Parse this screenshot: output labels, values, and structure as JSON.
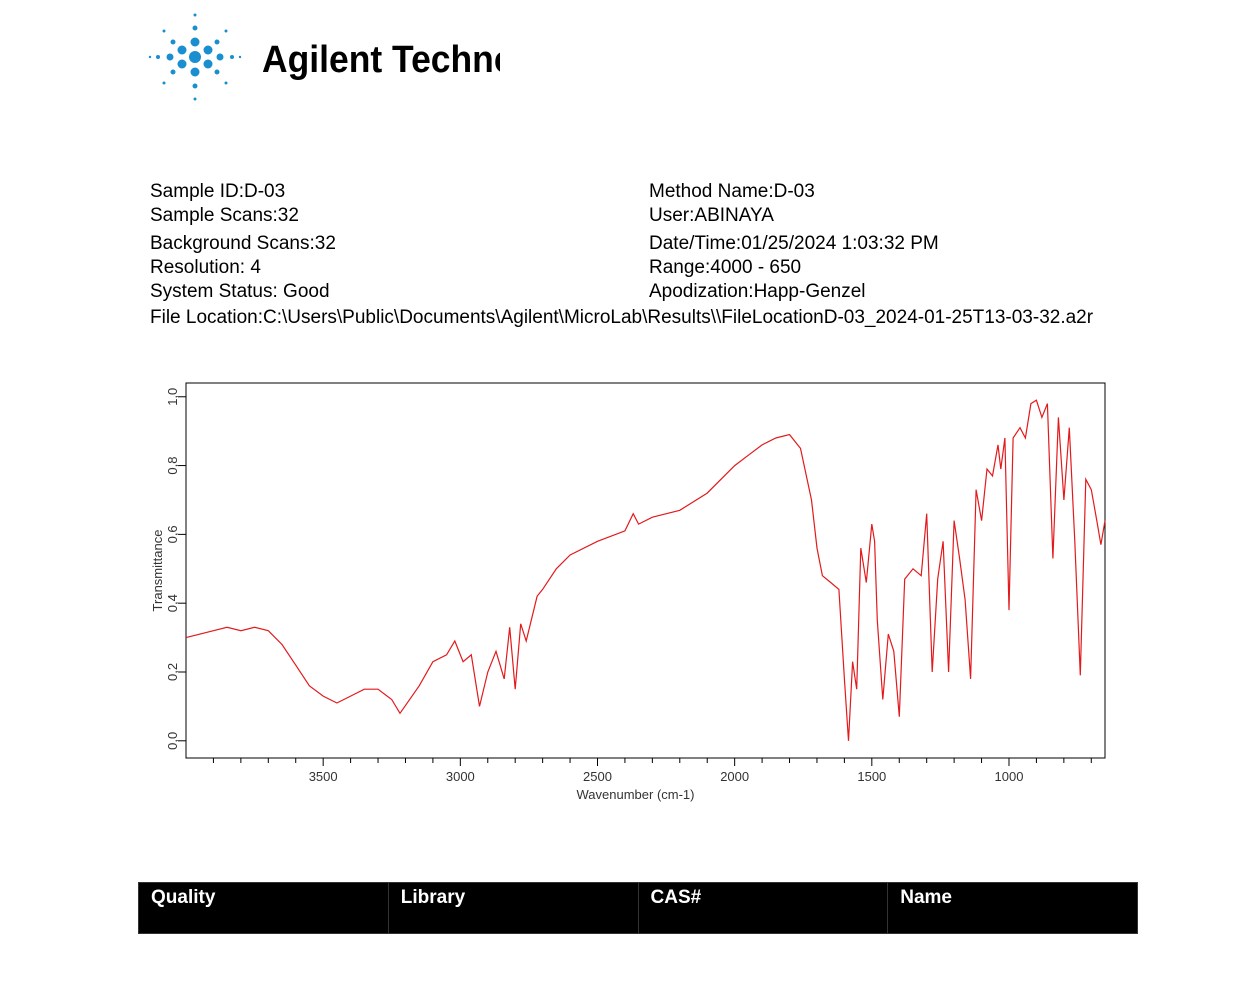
{
  "header": {
    "logo_text": "Agilent Technologies"
  },
  "info": {
    "left": [
      "Sample ID:D-03",
      "Sample Scans:32",
      "Background Scans:32",
      "Resolution: 4",
      "System Status: Good"
    ],
    "right": [
      "Method Name:D-03",
      "User:ABINAYA",
      "Date/Time:01/25/2024 1:03:32 PM",
      "Range:4000 - 650",
      "Apodization:Happ-Genzel"
    ],
    "file_location": "File Location:C:\\Users\\Public\\Documents\\Agilent\\MicroLab\\Results\\\\FileLocationD-03_2024-01-25T13-03-32.a2r"
  },
  "chart_data": {
    "type": "line",
    "xlabel": "Wavenumber (cm-1)",
    "ylabel": "Transmittance",
    "color": "#e31a1c",
    "xlim": [
      4000,
      650
    ],
    "ylim": [
      -0.05,
      1.04
    ],
    "xticks": [
      3500,
      3000,
      2500,
      2000,
      1500,
      1000
    ],
    "xminor_ticks": [
      3900,
      3800,
      3700,
      3600,
      3400,
      3300,
      3200,
      3100,
      2900,
      2800,
      2700,
      2600,
      2400,
      2300,
      2200,
      2100,
      1900,
      1800,
      1700,
      1600,
      1400,
      1300,
      1200,
      1100,
      900,
      800,
      700
    ],
    "yticks": [
      {
        "value": 0,
        "label": "0,0"
      },
      {
        "value": 0.2,
        "label": "0,2"
      },
      {
        "value": 0.4,
        "label": "0,4"
      },
      {
        "value": 0.6,
        "label": "0,6"
      },
      {
        "value": 0.8,
        "label": "0,8"
      },
      {
        "value": 1,
        "label": "1,0"
      }
    ],
    "x": [
      4000,
      3900,
      3850,
      3800,
      3750,
      3700,
      3650,
      3600,
      3550,
      3500,
      3450,
      3400,
      3350,
      3300,
      3250,
      3220,
      3150,
      3100,
      3050,
      3020,
      2990,
      2960,
      2930,
      2900,
      2870,
      2840,
      2820,
      2800,
      2780,
      2760,
      2720,
      2700,
      2650,
      2600,
      2500,
      2400,
      2370,
      2350,
      2300,
      2200,
      2100,
      2000,
      1950,
      1900,
      1850,
      1800,
      1760,
      1720,
      1700,
      1680,
      1650,
      1620,
      1600,
      1585,
      1570,
      1555,
      1540,
      1520,
      1500,
      1490,
      1480,
      1460,
      1440,
      1420,
      1400,
      1380,
      1350,
      1320,
      1300,
      1280,
      1260,
      1240,
      1220,
      1200,
      1180,
      1160,
      1140,
      1120,
      1100,
      1080,
      1060,
      1040,
      1030,
      1015,
      1000,
      985,
      960,
      940,
      920,
      900,
      880,
      860,
      840,
      820,
      800,
      780,
      760,
      740,
      720,
      700,
      680,
      665,
      650
    ],
    "values": [
      0.3,
      0.32,
      0.33,
      0.32,
      0.33,
      0.32,
      0.28,
      0.22,
      0.16,
      0.13,
      0.11,
      0.13,
      0.15,
      0.15,
      0.12,
      0.08,
      0.16,
      0.23,
      0.25,
      0.29,
      0.23,
      0.25,
      0.1,
      0.2,
      0.26,
      0.18,
      0.33,
      0.15,
      0.34,
      0.29,
      0.42,
      0.44,
      0.5,
      0.54,
      0.58,
      0.61,
      0.66,
      0.63,
      0.65,
      0.67,
      0.72,
      0.8,
      0.83,
      0.86,
      0.88,
      0.89,
      0.85,
      0.7,
      0.56,
      0.48,
      0.46,
      0.44,
      0.18,
      0.0,
      0.23,
      0.15,
      0.56,
      0.46,
      0.63,
      0.58,
      0.35,
      0.12,
      0.31,
      0.26,
      0.07,
      0.47,
      0.5,
      0.48,
      0.66,
      0.2,
      0.47,
      0.58,
      0.2,
      0.64,
      0.53,
      0.41,
      0.18,
      0.73,
      0.64,
      0.79,
      0.77,
      0.86,
      0.79,
      0.88,
      0.38,
      0.88,
      0.91,
      0.88,
      0.98,
      0.99,
      0.94,
      0.98,
      0.53,
      0.94,
      0.7,
      0.91,
      0.58,
      0.19,
      0.76,
      0.73,
      0.64,
      0.57,
      0.64
    ]
  },
  "table": {
    "header": [
      "Quality",
      "Library",
      "CAS#",
      "Name"
    ]
  }
}
